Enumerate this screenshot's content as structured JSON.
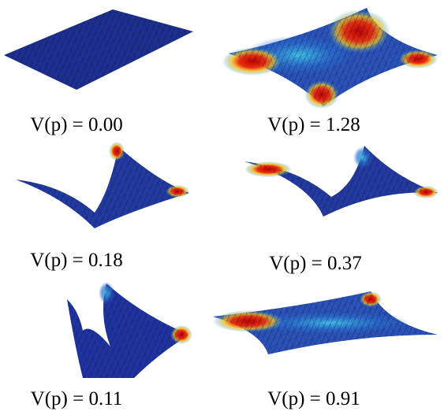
{
  "figure": {
    "panels": [
      {
        "caption": "V(p) = 0.00"
      },
      {
        "caption": "V(p) = 1.28"
      },
      {
        "caption": "V(p) = 0.18"
      },
      {
        "caption": "V(p) = 0.37"
      },
      {
        "caption": "V(p) = 0.11"
      },
      {
        "caption": "V(p) = 0.91"
      }
    ]
  }
}
